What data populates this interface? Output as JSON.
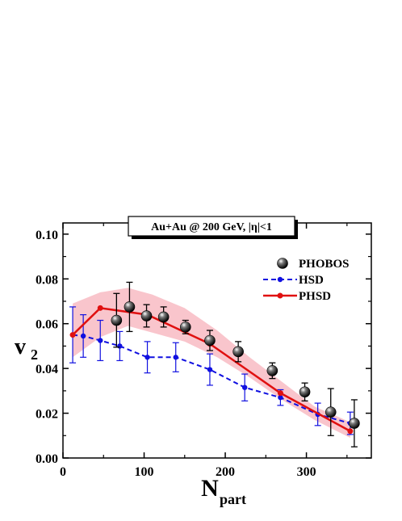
{
  "chart_data": {
    "type": "line",
    "title": "Au+Au @ 200 GeV,  |η|<1",
    "xlabel": "N",
    "xlabel_sub": "part",
    "ylabel": "v",
    "ylabel_sub": "2",
    "xlim": [
      0,
      380
    ],
    "ylim": [
      0.0,
      0.105
    ],
    "xticks": [
      "0",
      "100",
      "200",
      "300"
    ],
    "xtick_values": [
      0,
      100,
      200,
      300
    ],
    "yticks": [
      "0.00",
      "0.02",
      "0.04",
      "0.06",
      "0.08",
      "0.10"
    ],
    "ytick_values": [
      0.0,
      0.02,
      0.04,
      0.06,
      0.08,
      0.1
    ],
    "legend_position": "right",
    "series": [
      {
        "name": "PHOBOS",
        "style": "black-sphere markers with error bars",
        "color": "#000000",
        "x": [
          66,
          82,
          103,
          124,
          151,
          181,
          216,
          258,
          298,
          330,
          359
        ],
        "y": [
          0.0615,
          0.0675,
          0.0635,
          0.063,
          0.0585,
          0.0525,
          0.0475,
          0.039,
          0.0295,
          0.0205,
          0.0155
        ],
        "yerr": [
          0.012,
          0.011,
          0.005,
          0.0045,
          0.003,
          0.0045,
          0.0045,
          0.0035,
          0.004,
          0.0105,
          0.0105
        ]
      },
      {
        "name": "HSD",
        "style": "dashed line with dots",
        "color": "#1010e0",
        "x": [
          12,
          25,
          46,
          70,
          104,
          139,
          181,
          224,
          268,
          314,
          354
        ],
        "y": [
          0.055,
          0.0545,
          0.0525,
          0.05,
          0.045,
          0.045,
          0.0395,
          0.0315,
          0.027,
          0.0195,
          0.0155
        ],
        "yerr": [
          0.0125,
          0.0095,
          0.009,
          0.0065,
          0.007,
          0.0065,
          0.007,
          0.006,
          0.0035,
          0.005,
          0.005
        ]
      },
      {
        "name": "PHSD",
        "style": "solid line with dots and shaded band",
        "color": "#e01010",
        "band_color": "#f7b6bf",
        "x": [
          12,
          46,
          104,
          181,
          268,
          354
        ],
        "y": [
          0.055,
          0.067,
          0.064,
          0.051,
          0.029,
          0.012
        ],
        "band_x": [
          12,
          46,
          80,
          110,
          150,
          190,
          230,
          270,
          310,
          354
        ],
        "band_low": [
          0.045,
          0.054,
          0.059,
          0.056,
          0.052,
          0.045,
          0.036,
          0.026,
          0.017,
          0.009
        ],
        "band_high": [
          0.069,
          0.074,
          0.076,
          0.073,
          0.067,
          0.057,
          0.045,
          0.034,
          0.023,
          0.016
        ]
      }
    ]
  }
}
